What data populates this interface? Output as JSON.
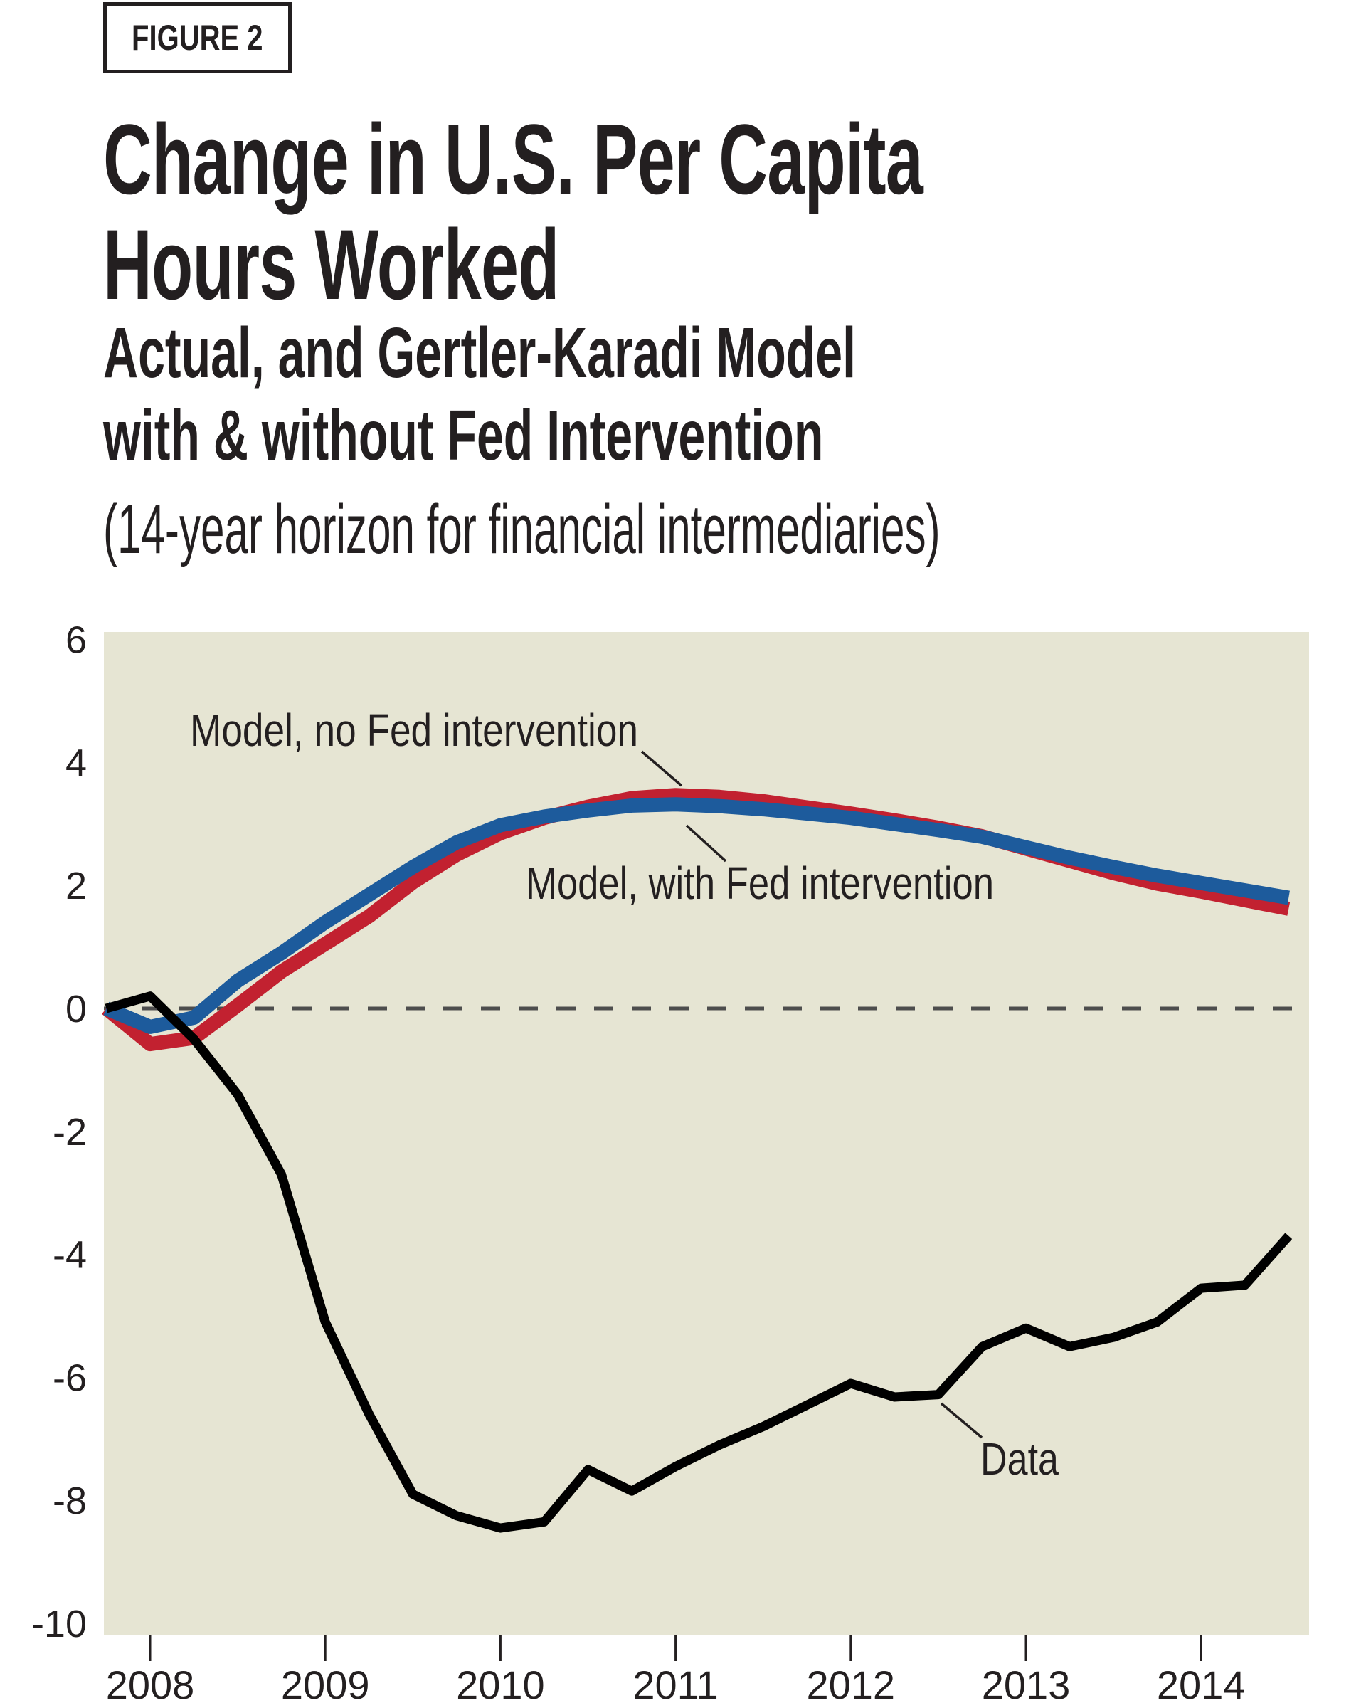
{
  "figure_label": "FIGURE 2",
  "title_lines": [
    "Change in U.S. Per Capita",
    "Hours Worked"
  ],
  "subtitle_lines": [
    "Actual, and Gertler-Karadi Model",
    "with & without Fed Intervention"
  ],
  "subnote": "(14-year horizon for financial intermediaries)",
  "colors": {
    "text": "#231f20",
    "plot_background": "#e6e5d3",
    "zero_dash": "#4d4d4d",
    "model_no_fed": "#c22130",
    "model_with_fed": "#1d5b9c",
    "data_line": "#000000"
  },
  "chart_data": {
    "type": "line",
    "title": "Change in U.S. Per Capita Hours Worked",
    "xlabel": "",
    "ylabel": "",
    "xlim": [
      2007.73,
      2014.62
    ],
    "ylim": [
      -10.2,
      6.1
    ],
    "grid": false,
    "legend_position": "inline-annotations",
    "zero_line_dashed": true,
    "x": [
      2007.75,
      2008,
      2008.25,
      2008.5,
      2008.75,
      2009,
      2009.25,
      2009.5,
      2009.75,
      2010,
      2010.25,
      2010.5,
      2010.75,
      2011,
      2011.25,
      2011.5,
      2011.75,
      2012,
      2012.25,
      2012.5,
      2012.75,
      2013,
      2013.25,
      2013.5,
      2013.75,
      2014,
      2014.25,
      2014.5
    ],
    "series": [
      {
        "name": "Model, no Fed intervention",
        "color": "#c22130",
        "stroke_width": 20,
        "values": [
          0,
          -0.58,
          -0.48,
          0.05,
          0.6,
          1.05,
          1.5,
          2.05,
          2.5,
          2.85,
          3.1,
          3.28,
          3.42,
          3.47,
          3.44,
          3.37,
          3.27,
          3.17,
          3.06,
          2.94,
          2.8,
          2.6,
          2.4,
          2.2,
          2.03,
          1.9,
          1.76,
          1.62
        ]
      },
      {
        "name": "Model, with Fed intervention",
        "color": "#1d5b9c",
        "stroke_width": 20,
        "values": [
          0,
          -0.3,
          -0.15,
          0.45,
          0.9,
          1.4,
          1.85,
          2.3,
          2.7,
          2.98,
          3.12,
          3.22,
          3.3,
          3.32,
          3.29,
          3.24,
          3.17,
          3.1,
          3.0,
          2.9,
          2.79,
          2.62,
          2.45,
          2.3,
          2.16,
          2.04,
          1.92,
          1.8
        ]
      },
      {
        "name": "Data",
        "color": "#000000",
        "stroke_width": 13,
        "values": [
          0,
          0.2,
          -0.5,
          -1.4,
          -2.7,
          -5.1,
          -6.6,
          -7.9,
          -8.25,
          -8.45,
          -8.35,
          -7.5,
          -7.85,
          -7.45,
          -7.1,
          -6.8,
          -6.45,
          -6.1,
          -6.32,
          -6.28,
          -5.5,
          -5.2,
          -5.5,
          -5.35,
          -5.1,
          -4.55,
          -4.5,
          -3.7
        ]
      }
    ],
    "yticks": {
      "values": [
        6,
        4,
        2,
        0,
        -2,
        -4,
        -6,
        -8,
        -10
      ],
      "labels": [
        "6",
        "4",
        "2",
        "0",
        "-2",
        "-4",
        "-6",
        "-8",
        "-10"
      ]
    },
    "xticks": {
      "values": [
        2008,
        2009,
        2010,
        2011,
        2012,
        2013,
        2014
      ],
      "labels": [
        "2008",
        "2009",
        "2010",
        "2011",
        "2012",
        "2013",
        "2014"
      ]
    },
    "annotations": [
      {
        "text": "Model, no Fed intervention",
        "text_x": 267,
        "baseline_y": 1048,
        "text_length": 630,
        "leader": [
          902,
          1056,
          958,
          1104
        ]
      },
      {
        "text": "Model, with Fed intervention",
        "text_x": 739,
        "baseline_y": 1263,
        "text_length": 658,
        "leader": [
          965,
          1160,
          1020,
          1210
        ]
      },
      {
        "text": "Data",
        "text_x": 1378,
        "baseline_y": 2072,
        "text_length": 110,
        "leader": [
          1323,
          1972,
          1380,
          2020
        ]
      }
    ]
  }
}
